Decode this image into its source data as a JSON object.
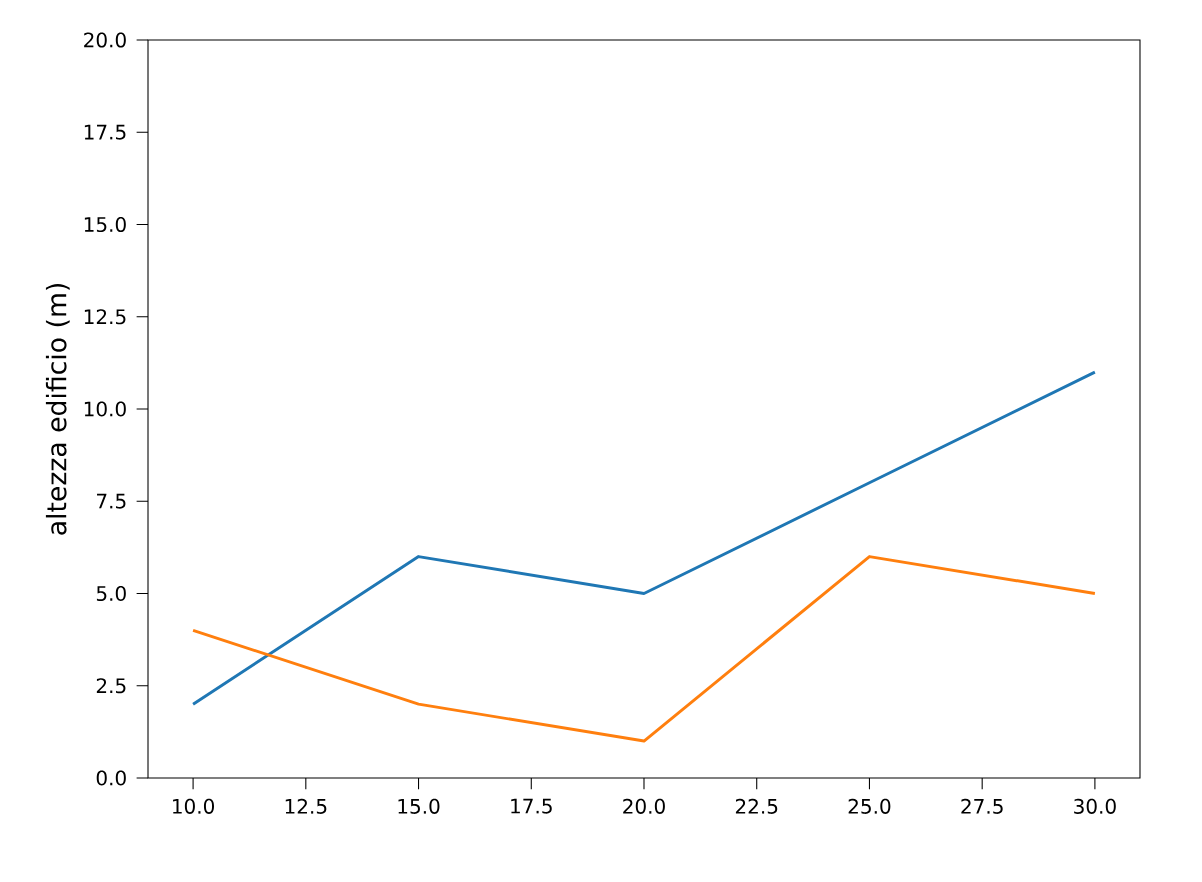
{
  "chart_data": {
    "type": "line",
    "ylabel": "altezza edificio (m)",
    "x": [
      10,
      15,
      20,
      25,
      30
    ],
    "series": [
      {
        "color": "#1f77b4",
        "values": [
          2,
          6,
          5,
          8,
          11
        ]
      },
      {
        "color": "#ff7f0e",
        "values": [
          4,
          2,
          1,
          6,
          5
        ]
      }
    ],
    "xlim": [
      9,
      31
    ],
    "ylim": [
      0,
      20
    ],
    "xticks": [
      {
        "value": 10,
        "label": "10.0"
      },
      {
        "value": 12.5,
        "label": "12.5"
      },
      {
        "value": 15,
        "label": "15.0"
      },
      {
        "value": 17.5,
        "label": "17.5"
      },
      {
        "value": 20,
        "label": "20.0"
      },
      {
        "value": 22.5,
        "label": "22.5"
      },
      {
        "value": 25,
        "label": "25.0"
      },
      {
        "value": 27.5,
        "label": "27.5"
      },
      {
        "value": 30,
        "label": "30.0"
      }
    ],
    "yticks": [
      {
        "value": 0,
        "label": "0.0"
      },
      {
        "value": 2.5,
        "label": "2.5"
      },
      {
        "value": 5,
        "label": "5.0"
      },
      {
        "value": 7.5,
        "label": "7.5"
      },
      {
        "value": 10,
        "label": "10.0"
      },
      {
        "value": 12.5,
        "label": "12.5"
      },
      {
        "value": 15,
        "label": "15.0"
      },
      {
        "value": 17.5,
        "label": "17.5"
      },
      {
        "value": 20,
        "label": "20.0"
      }
    ],
    "grid": false,
    "marker": "none",
    "line_style": "solid"
  }
}
